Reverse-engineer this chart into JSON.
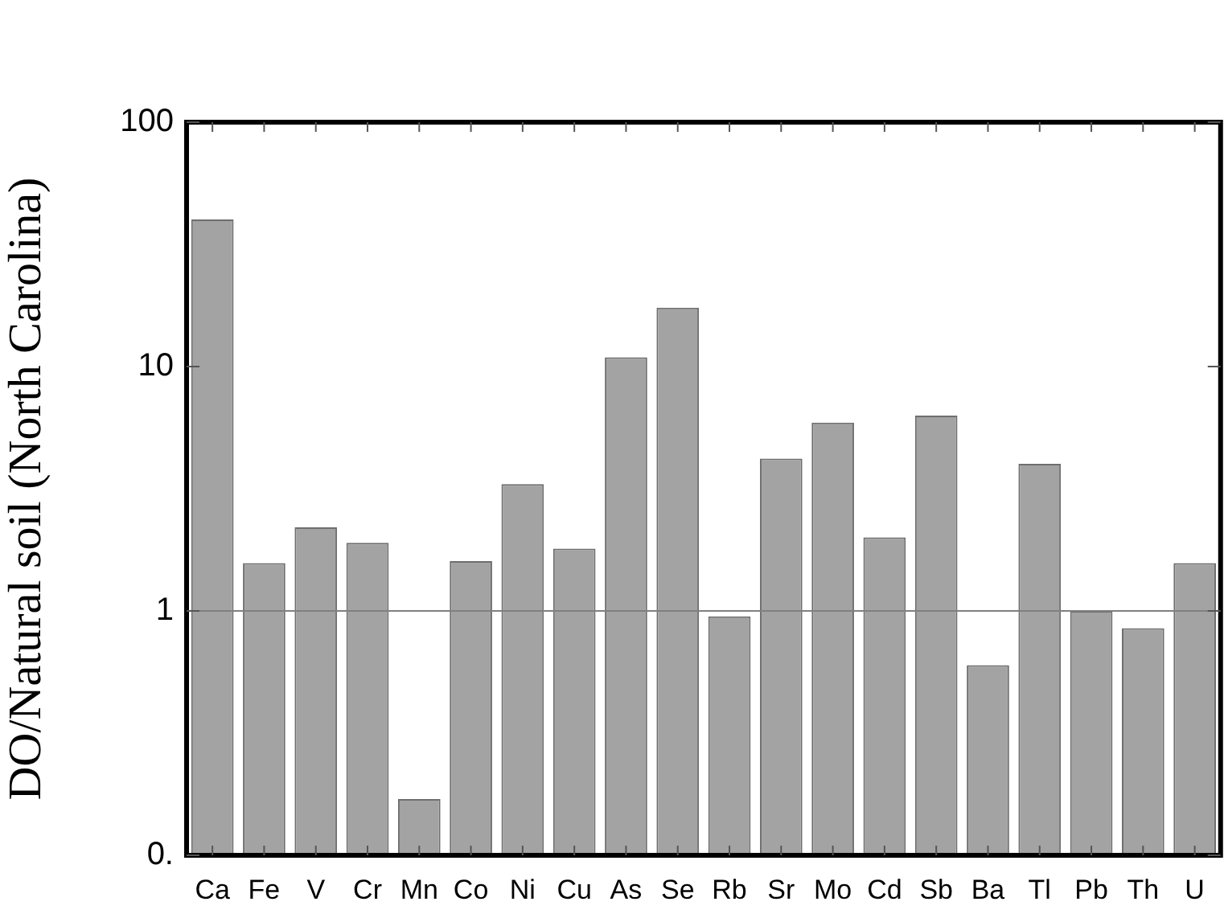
{
  "chart_data": {
    "type": "bar",
    "ylabel": "DO/Natural soil (North Carolina)",
    "categories": [
      "Ca",
      "Fe",
      "V",
      "Cr",
      "Mn",
      "Co",
      "Ni",
      "Cu",
      "As",
      "Se",
      "Rb",
      "Sr",
      "Mo",
      "Cd",
      "Sb",
      "Ba",
      "Tl",
      "Pb",
      "Th",
      "U"
    ],
    "values": [
      40,
      1.57,
      2.2,
      1.9,
      0.17,
      1.6,
      3.3,
      1.8,
      10.9,
      17.4,
      0.95,
      4.2,
      5.9,
      2.0,
      6.3,
      0.6,
      4.0,
      1.0,
      0.85,
      1.57
    ],
    "color": "#a3a3a3",
    "log": true,
    "ylim": [
      0.1,
      100
    ],
    "yticks": [
      {
        "value": 0.1,
        "label": "0."
      },
      1,
      10,
      100
    ],
    "ref_lines": [
      {
        "axis": "y",
        "value": 1,
        "color": "#808080"
      }
    ],
    "grid": false,
    "legend": false
  }
}
